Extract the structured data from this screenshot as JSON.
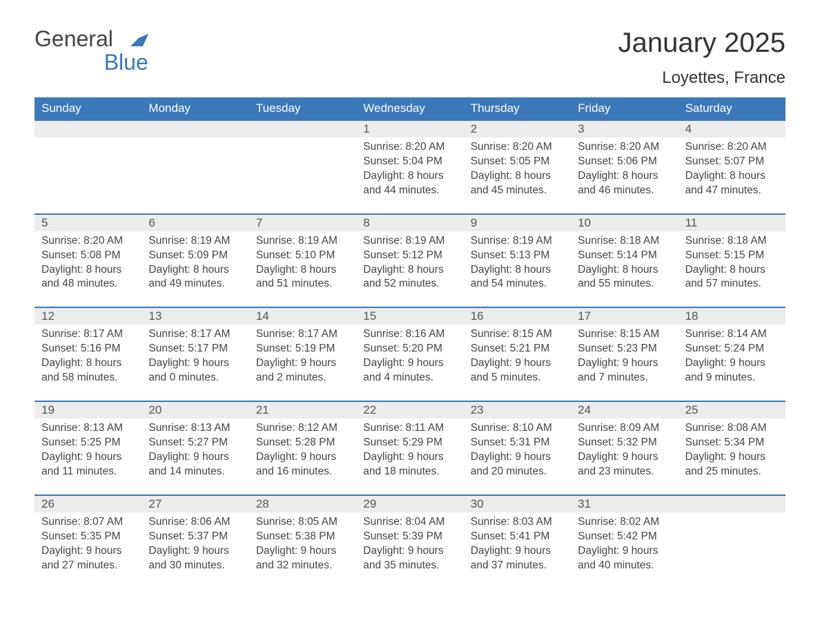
{
  "colors": {
    "brand_blue": "#3a78b9",
    "header_row_bg": "#3a78b9",
    "header_row_text": "#ffffff",
    "day_num_row_bg": "#ececec",
    "day_num_text": "#555555",
    "body_text": "#444444",
    "week_divider": "#3a78b9",
    "page_bg": "#ffffff"
  },
  "logo": {
    "line1": "General",
    "line2": "Blue"
  },
  "title": "January 2025",
  "location": "Loyettes, France",
  "typography": {
    "title_fontsize": 40,
    "location_fontsize": 24,
    "header_fontsize": 17,
    "daynum_fontsize": 17,
    "body_fontsize": 15.5,
    "font_family": "Arial"
  },
  "calendar": {
    "days_of_week": [
      "Sunday",
      "Monday",
      "Tuesday",
      "Wednesday",
      "Thursday",
      "Friday",
      "Saturday"
    ],
    "weeks": [
      [
        null,
        null,
        null,
        {
          "num": "1",
          "sunrise": "8:20 AM",
          "sunset": "5:04 PM",
          "daylight": "8 hours and 44 minutes."
        },
        {
          "num": "2",
          "sunrise": "8:20 AM",
          "sunset": "5:05 PM",
          "daylight": "8 hours and 45 minutes."
        },
        {
          "num": "3",
          "sunrise": "8:20 AM",
          "sunset": "5:06 PM",
          "daylight": "8 hours and 46 minutes."
        },
        {
          "num": "4",
          "sunrise": "8:20 AM",
          "sunset": "5:07 PM",
          "daylight": "8 hours and 47 minutes."
        }
      ],
      [
        {
          "num": "5",
          "sunrise": "8:20 AM",
          "sunset": "5:08 PM",
          "daylight": "8 hours and 48 minutes."
        },
        {
          "num": "6",
          "sunrise": "8:19 AM",
          "sunset": "5:09 PM",
          "daylight": "8 hours and 49 minutes."
        },
        {
          "num": "7",
          "sunrise": "8:19 AM",
          "sunset": "5:10 PM",
          "daylight": "8 hours and 51 minutes."
        },
        {
          "num": "8",
          "sunrise": "8:19 AM",
          "sunset": "5:12 PM",
          "daylight": "8 hours and 52 minutes."
        },
        {
          "num": "9",
          "sunrise": "8:19 AM",
          "sunset": "5:13 PM",
          "daylight": "8 hours and 54 minutes."
        },
        {
          "num": "10",
          "sunrise": "8:18 AM",
          "sunset": "5:14 PM",
          "daylight": "8 hours and 55 minutes."
        },
        {
          "num": "11",
          "sunrise": "8:18 AM",
          "sunset": "5:15 PM",
          "daylight": "8 hours and 57 minutes."
        }
      ],
      [
        {
          "num": "12",
          "sunrise": "8:17 AM",
          "sunset": "5:16 PM",
          "daylight": "8 hours and 58 minutes."
        },
        {
          "num": "13",
          "sunrise": "8:17 AM",
          "sunset": "5:17 PM",
          "daylight": "9 hours and 0 minutes."
        },
        {
          "num": "14",
          "sunrise": "8:17 AM",
          "sunset": "5:19 PM",
          "daylight": "9 hours and 2 minutes."
        },
        {
          "num": "15",
          "sunrise": "8:16 AM",
          "sunset": "5:20 PM",
          "daylight": "9 hours and 4 minutes."
        },
        {
          "num": "16",
          "sunrise": "8:15 AM",
          "sunset": "5:21 PM",
          "daylight": "9 hours and 5 minutes."
        },
        {
          "num": "17",
          "sunrise": "8:15 AM",
          "sunset": "5:23 PM",
          "daylight": "9 hours and 7 minutes."
        },
        {
          "num": "18",
          "sunrise": "8:14 AM",
          "sunset": "5:24 PM",
          "daylight": "9 hours and 9 minutes."
        }
      ],
      [
        {
          "num": "19",
          "sunrise": "8:13 AM",
          "sunset": "5:25 PM",
          "daylight": "9 hours and 11 minutes."
        },
        {
          "num": "20",
          "sunrise": "8:13 AM",
          "sunset": "5:27 PM",
          "daylight": "9 hours and 14 minutes."
        },
        {
          "num": "21",
          "sunrise": "8:12 AM",
          "sunset": "5:28 PM",
          "daylight": "9 hours and 16 minutes."
        },
        {
          "num": "22",
          "sunrise": "8:11 AM",
          "sunset": "5:29 PM",
          "daylight": "9 hours and 18 minutes."
        },
        {
          "num": "23",
          "sunrise": "8:10 AM",
          "sunset": "5:31 PM",
          "daylight": "9 hours and 20 minutes."
        },
        {
          "num": "24",
          "sunrise": "8:09 AM",
          "sunset": "5:32 PM",
          "daylight": "9 hours and 23 minutes."
        },
        {
          "num": "25",
          "sunrise": "8:08 AM",
          "sunset": "5:34 PM",
          "daylight": "9 hours and 25 minutes."
        }
      ],
      [
        {
          "num": "26",
          "sunrise": "8:07 AM",
          "sunset": "5:35 PM",
          "daylight": "9 hours and 27 minutes."
        },
        {
          "num": "27",
          "sunrise": "8:06 AM",
          "sunset": "5:37 PM",
          "daylight": "9 hours and 30 minutes."
        },
        {
          "num": "28",
          "sunrise": "8:05 AM",
          "sunset": "5:38 PM",
          "daylight": "9 hours and 32 minutes."
        },
        {
          "num": "29",
          "sunrise": "8:04 AM",
          "sunset": "5:39 PM",
          "daylight": "9 hours and 35 minutes."
        },
        {
          "num": "30",
          "sunrise": "8:03 AM",
          "sunset": "5:41 PM",
          "daylight": "9 hours and 37 minutes."
        },
        {
          "num": "31",
          "sunrise": "8:02 AM",
          "sunset": "5:42 PM",
          "daylight": "9 hours and 40 minutes."
        },
        null
      ]
    ],
    "labels": {
      "sunrise_prefix": "Sunrise: ",
      "sunset_prefix": "Sunset: ",
      "daylight_prefix": "Daylight: "
    }
  }
}
